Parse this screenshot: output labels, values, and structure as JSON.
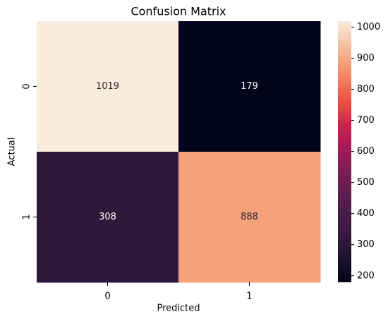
{
  "chart_data": {
    "type": "heatmap",
    "title": "Confusion Matrix",
    "x_label": "Predicted",
    "y_label": "Actual",
    "x_categories": [
      "0",
      "1"
    ],
    "y_categories": [
      "0",
      "1"
    ],
    "values": [
      [
        1019,
        179
      ],
      [
        308,
        888
      ]
    ],
    "colormap": "rocket",
    "zlim": [
      179,
      1019
    ],
    "zticks": [
      200,
      300,
      400,
      500,
      600,
      700,
      800,
      900,
      1000
    ]
  }
}
